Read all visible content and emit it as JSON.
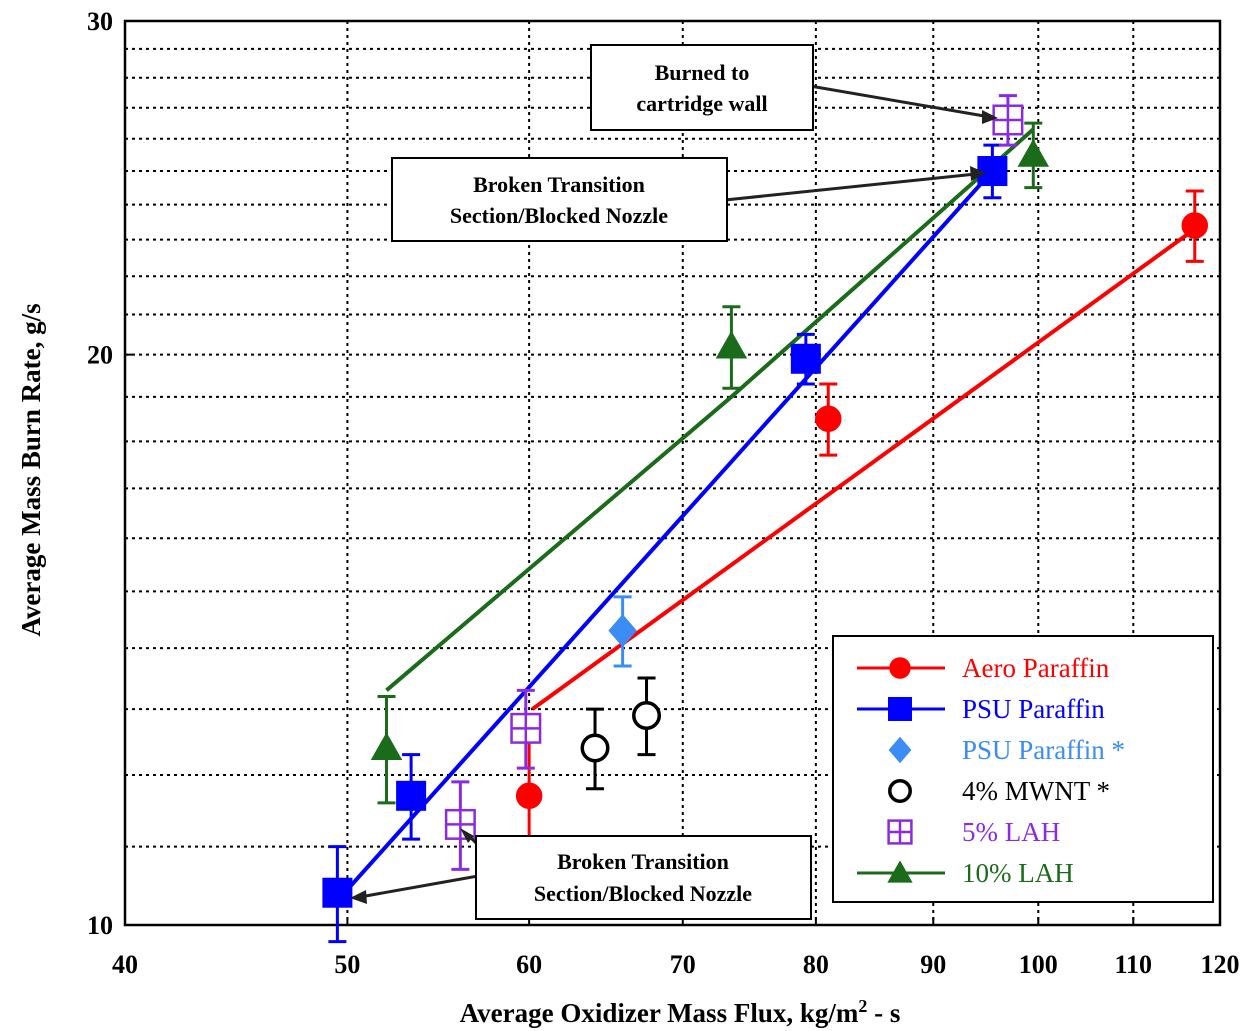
{
  "chart_data": {
    "type": "scatter",
    "title": "",
    "xlabel_main": "Average Oxidizer Mass Flux, kg/m",
    "xlabel_sup": "2",
    "xlabel_tail": " - s",
    "ylabel": "Average Mass Burn Rate, g/s",
    "x_axis": {
      "min": 40,
      "max": 120,
      "ticks": [
        40,
        50,
        60,
        70,
        80,
        90,
        100,
        110,
        120
      ],
      "tick_labels": [
        "40",
        "50",
        "60",
        "70",
        "80",
        "90",
        "100",
        "110",
        "120"
      ],
      "scale": "log"
    },
    "y_axis": {
      "min": 10,
      "max": 30,
      "ticks": [
        10,
        20,
        30
      ],
      "tick_labels": [
        "10",
        "20",
        "30"
      ],
      "minor_gridlines": [
        11,
        12,
        13,
        14,
        15,
        16,
        17,
        18,
        19,
        21,
        22,
        23,
        24,
        25,
        26,
        27,
        28,
        29
      ],
      "scale": "log"
    },
    "grid": "dotted",
    "legend_position": "bottom-right",
    "series": [
      {
        "name": "Aero Paraffin",
        "color": "#ff0000",
        "marker": "circle",
        "has_line": true,
        "points": [
          {
            "x": 60,
            "y": 11.7,
            "err": 0.9
          },
          {
            "x": 81,
            "y": 18.5,
            "err": 0.8
          },
          {
            "x": 117,
            "y": 23.4,
            "err": 1.0
          }
        ],
        "fit": [
          {
            "x": 60.2,
            "y": 13.0
          },
          {
            "x": 117,
            "y": 23.3
          }
        ]
      },
      {
        "name": "PSU Paraffin",
        "color": "#0000ff",
        "marker": "square",
        "has_line": true,
        "points": [
          {
            "x": 49.5,
            "y": 10.4,
            "err": 0.6
          },
          {
            "x": 53.3,
            "y": 11.7,
            "err": 0.6
          },
          {
            "x": 79.2,
            "y": 19.9,
            "err": 0.6
          },
          {
            "x": 95.5,
            "y": 25.0,
            "err": 0.8
          }
        ],
        "fit": [
          {
            "x": 49.5,
            "y": 10.3
          },
          {
            "x": 95.5,
            "y": 25.0
          }
        ]
      },
      {
        "name": "PSU Paraffin *",
        "color": "#3b8cf5",
        "marker": "diamond",
        "has_line": false,
        "points": [
          {
            "x": 65.9,
            "y": 14.3,
            "err": 0.6
          }
        ]
      },
      {
        "name": "4% MWNT *",
        "color": "#000000",
        "marker": "open-circle",
        "has_line": false,
        "points": [
          {
            "x": 64.1,
            "y": 12.4,
            "err": 0.6
          },
          {
            "x": 67.5,
            "y": 12.9,
            "err": 0.6
          }
        ]
      },
      {
        "name": "5% LAH",
        "color": "#8a2be2",
        "marker": "square-plus",
        "has_line": false,
        "points": [
          {
            "x": 56.0,
            "y": 11.3,
            "err": 0.6
          },
          {
            "x": 59.8,
            "y": 12.7,
            "err": 0.6
          },
          {
            "x": 97.0,
            "y": 26.6,
            "err": 0.8
          }
        ]
      },
      {
        "name": "10%  LAH",
        "color": "#1a6b1a",
        "marker": "triangle",
        "has_line": true,
        "points": [
          {
            "x": 52.0,
            "y": 12.4,
            "err": 0.8
          },
          {
            "x": 73.5,
            "y": 20.2,
            "err": 1.0
          },
          {
            "x": 99.5,
            "y": 25.5,
            "err": 1.0
          }
        ],
        "fit": [
          {
            "x": 52.0,
            "y": 13.3
          },
          {
            "x": 73.5,
            "y": 19.0
          },
          {
            "x": 99.5,
            "y": 26.3
          }
        ]
      }
    ],
    "annotations": [
      {
        "lines": [
          "Burned to",
          "cartridge wall"
        ]
      },
      {
        "lines": [
          "Broken Transition",
          "Section/Blocked Nozzle"
        ]
      },
      {
        "lines": [
          "Broken Transition",
          "Section/Blocked Nozzle"
        ]
      }
    ]
  }
}
